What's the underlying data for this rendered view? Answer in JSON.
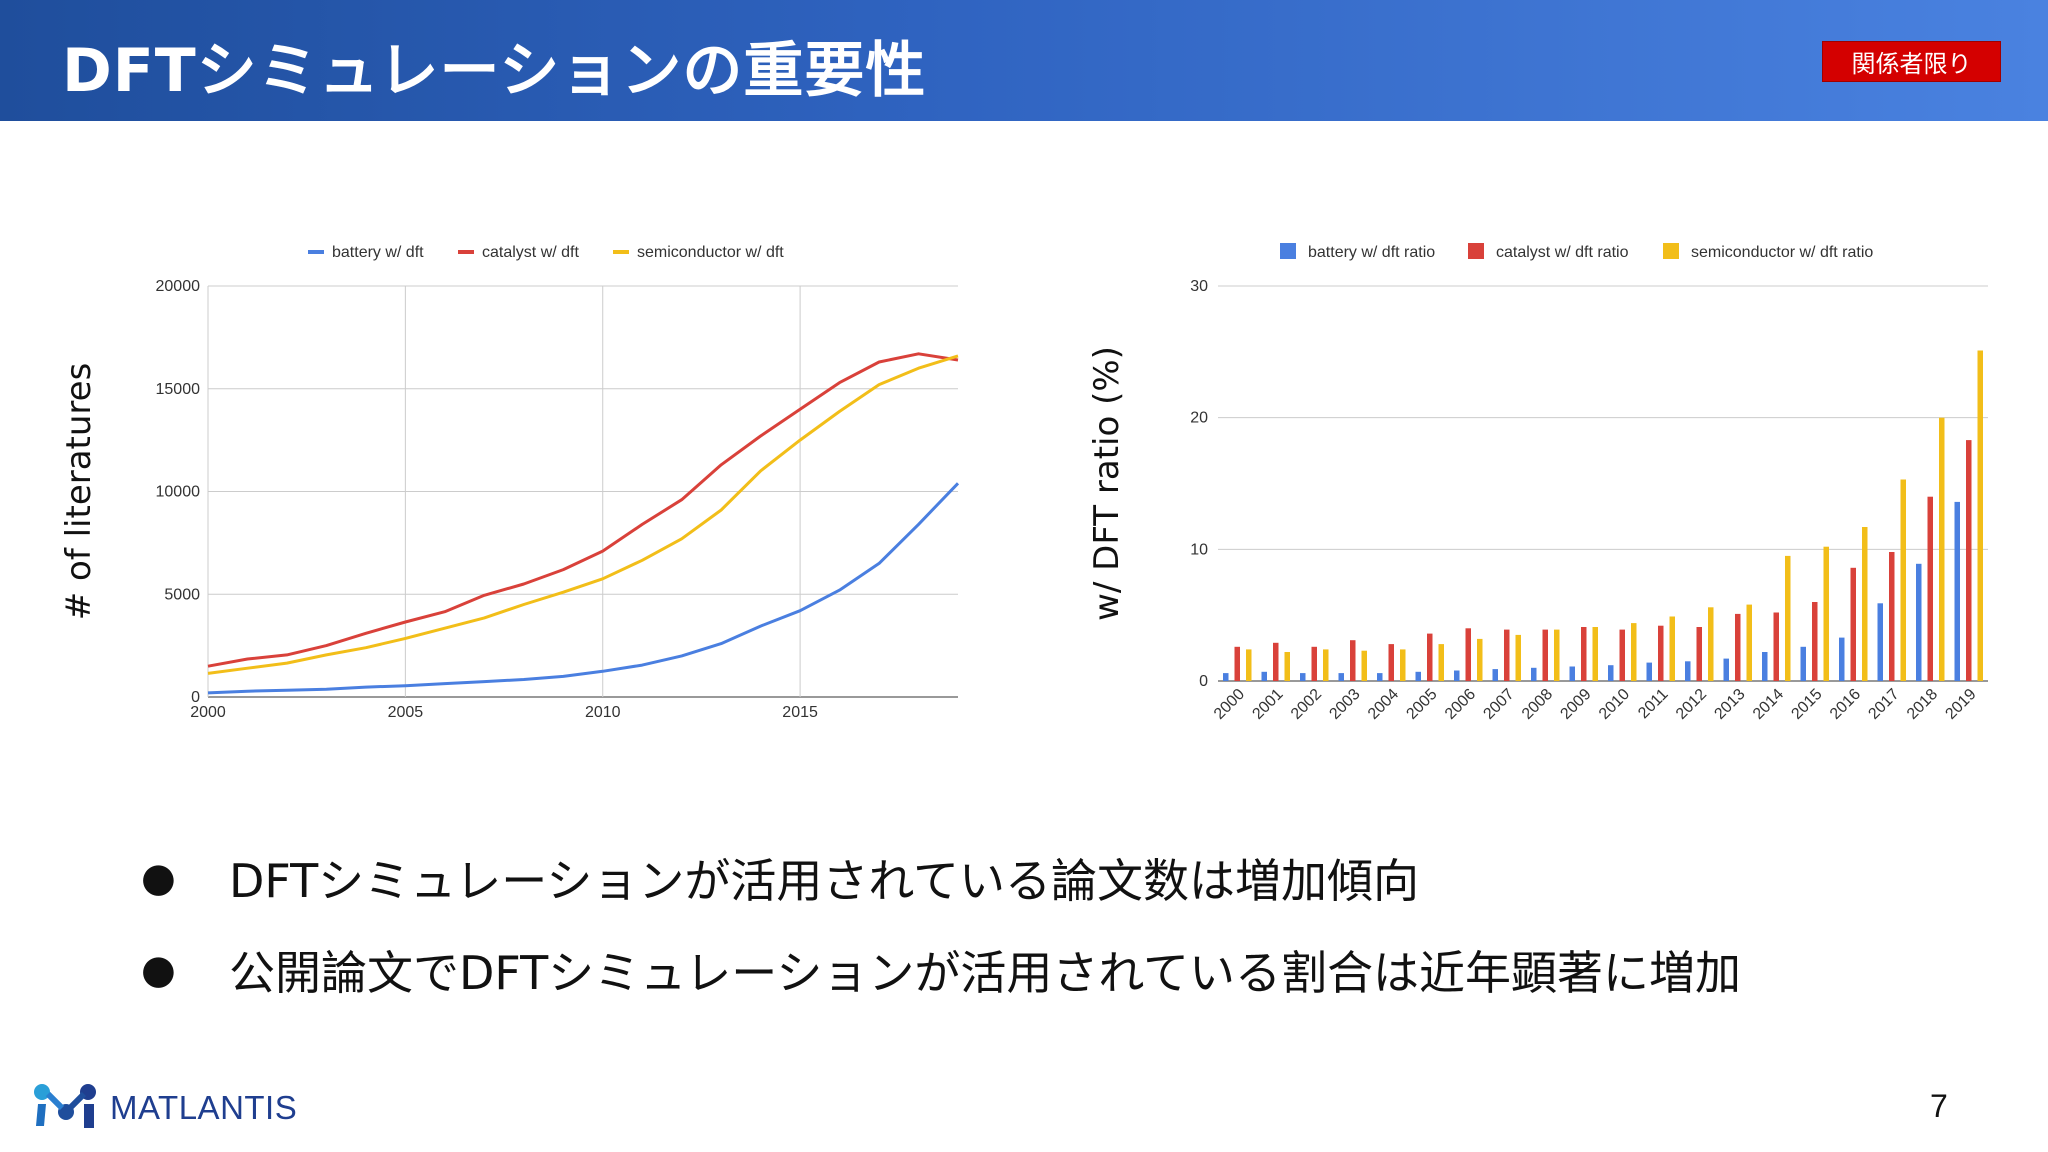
{
  "header": {
    "title": "DFTシミュレーションの重要性",
    "badge": "関係者限り"
  },
  "colors": {
    "battery": "#4a7fe0",
    "catalyst": "#d9413a",
    "semiconductor": "#f2be19",
    "badge": "#d40000",
    "header_start": "#1f4e9c",
    "header_end": "#4a82e0"
  },
  "chart_data": [
    {
      "type": "line",
      "ylabel": "# of literatures",
      "xlabel": "",
      "xlim": [
        2000,
        2019
      ],
      "ylim": [
        0,
        20000
      ],
      "yticks": [
        "0",
        "5000",
        "10000",
        "15000",
        "20000"
      ],
      "xticks": [
        "2000",
        "2005",
        "2010",
        "2015"
      ],
      "grid": true,
      "legend": "top",
      "x": [
        2000,
        2001,
        2002,
        2003,
        2004,
        2005,
        2006,
        2007,
        2008,
        2009,
        2010,
        2011,
        2012,
        2013,
        2014,
        2015,
        2016,
        2017,
        2018,
        2019
      ],
      "series": [
        {
          "name": "battery w/ dft",
          "values": [
            200,
            280,
            330,
            380,
            480,
            550,
            650,
            750,
            850,
            1000,
            1250,
            1550,
            2000,
            2600,
            3450,
            4200,
            5200,
            6500,
            8400,
            10400
          ]
        },
        {
          "name": "catalyst w/ dft",
          "values": [
            1500,
            1850,
            2050,
            2500,
            3100,
            3650,
            4150,
            4950,
            5500,
            6200,
            7100,
            8400,
            9600,
            11300,
            12700,
            14000,
            15300,
            16300,
            16700,
            16400
          ]
        },
        {
          "name": "semiconductor w/ dft",
          "values": [
            1150,
            1400,
            1650,
            2050,
            2400,
            2850,
            3350,
            3850,
            4500,
            5100,
            5750,
            6650,
            7700,
            9100,
            11000,
            12500,
            13900,
            15200,
            16000,
            16600
          ]
        }
      ]
    },
    {
      "type": "bar",
      "ylabel": "w/ DFT ratio (%)",
      "xlabel": "",
      "ylim": [
        0,
        30
      ],
      "yticks": [
        "0",
        "10",
        "20",
        "30"
      ],
      "grid": true,
      "legend": "top",
      "categories": [
        "2000",
        "2001",
        "2002",
        "2003",
        "2004",
        "2005",
        "2006",
        "2007",
        "2008",
        "2009",
        "2010",
        "2011",
        "2012",
        "2013",
        "2014",
        "2015",
        "2016",
        "2017",
        "2018",
        "2019"
      ],
      "series": [
        {
          "name": "battery w/ dft ratio",
          "values": [
            0.6,
            0.7,
            0.6,
            0.6,
            0.6,
            0.7,
            0.8,
            0.9,
            1.0,
            1.1,
            1.2,
            1.4,
            1.5,
            1.7,
            2.2,
            2.6,
            3.3,
            5.9,
            8.9,
            13.6
          ]
        },
        {
          "name": "catalyst w/ dft ratio",
          "values": [
            2.6,
            2.9,
            2.6,
            3.1,
            2.8,
            3.6,
            4.0,
            3.9,
            3.9,
            4.1,
            3.9,
            4.2,
            4.1,
            5.1,
            5.2,
            6.0,
            8.6,
            9.8,
            14.0,
            18.3
          ]
        },
        {
          "name": "semiconductor w/ dft ratio",
          "values": [
            2.4,
            2.2,
            2.4,
            2.3,
            2.4,
            2.8,
            3.2,
            3.5,
            3.9,
            4.1,
            4.4,
            4.9,
            5.6,
            5.8,
            9.5,
            10.2,
            11.7,
            15.3,
            20.0,
            25.1
          ]
        }
      ]
    }
  ],
  "bullets": [
    {
      "marker": "●",
      "text": "DFTシミュレーションが活用されている論文数は増加傾向"
    },
    {
      "marker": "●",
      "text": "公開論文でDFTシミュレーションが活用されている割合は近年顕著に増加"
    }
  ],
  "footer": {
    "brand": "MATLANTIS",
    "logo_icon": "matlantis-logo-icon",
    "page_number": "7"
  }
}
